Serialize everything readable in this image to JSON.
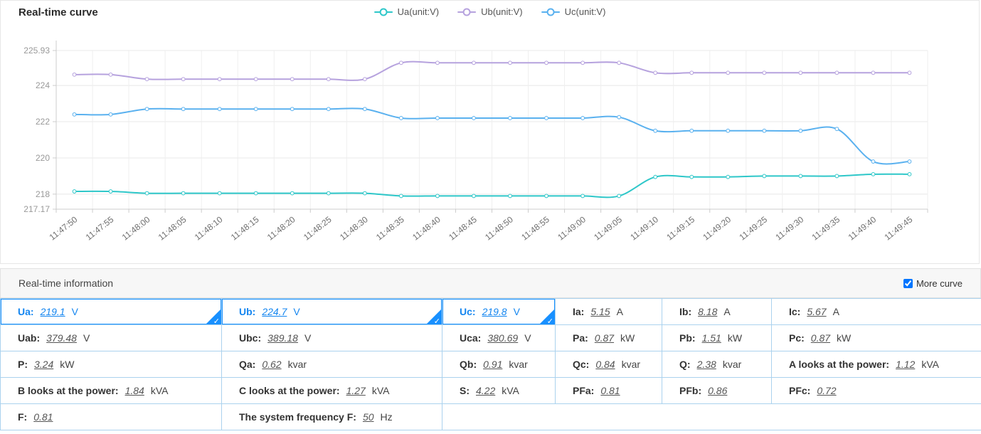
{
  "chart": {
    "title": "Real-time curve",
    "legend": [
      {
        "label": "Ua(unit:V)",
        "color": "#2ec7c9"
      },
      {
        "label": "Ub(unit:V)",
        "color": "#b6a2de"
      },
      {
        "label": "Uc(unit:V)",
        "color": "#5ab1ef"
      }
    ]
  },
  "chart_data": {
    "type": "line",
    "smooth": true,
    "grid": true,
    "legend_position": "top-center",
    "x": [
      "11:47:50",
      "11:47:55",
      "11:48:00",
      "11:48:05",
      "11:48:10",
      "11:48:15",
      "11:48:20",
      "11:48:25",
      "11:48:30",
      "11:48:35",
      "11:48:40",
      "11:48:45",
      "11:48:50",
      "11:48:55",
      "11:49:00",
      "11:49:05",
      "11:49:10",
      "11:49:15",
      "11:49:20",
      "11:49:25",
      "11:49:30",
      "11:49:35",
      "11:49:40",
      "11:49:45"
    ],
    "ylim": [
      217.17,
      225.93
    ],
    "yticks": [
      {
        "v": 217.17,
        "label": "217.17"
      },
      {
        "v": 218,
        "label": "218"
      },
      {
        "v": 220,
        "label": "220"
      },
      {
        "v": 222,
        "label": "222"
      },
      {
        "v": 224,
        "label": "224"
      },
      {
        "v": 225.93,
        "label": "225.93"
      }
    ],
    "series": [
      {
        "name": "Ua(unit:V)",
        "color": "#2ec7c9",
        "values": [
          218.15,
          218.15,
          218.05,
          218.05,
          218.05,
          218.05,
          218.05,
          218.05,
          218.05,
          217.9,
          217.9,
          217.9,
          217.9,
          217.9,
          217.9,
          217.9,
          218.95,
          218.95,
          218.95,
          219.0,
          219.0,
          219.0,
          219.1,
          219.1
        ]
      },
      {
        "name": "Ub(unit:V)",
        "color": "#b6a2de",
        "values": [
          224.6,
          224.6,
          224.35,
          224.35,
          224.35,
          224.35,
          224.35,
          224.35,
          224.35,
          225.25,
          225.25,
          225.25,
          225.25,
          225.25,
          225.25,
          225.25,
          224.7,
          224.7,
          224.7,
          224.7,
          224.7,
          224.7,
          224.7,
          224.7
        ]
      },
      {
        "name": "Uc(unit:V)",
        "color": "#5ab1ef",
        "values": [
          222.4,
          222.4,
          222.7,
          222.7,
          222.7,
          222.7,
          222.7,
          222.7,
          222.7,
          222.2,
          222.2,
          222.2,
          222.2,
          222.2,
          222.2,
          222.25,
          221.5,
          221.5,
          221.5,
          221.5,
          221.5,
          221.6,
          219.8,
          219.8
        ]
      }
    ]
  },
  "info": {
    "header": "Real-time information",
    "more_curve_label": "More curve",
    "more_curve_checked": true,
    "accent_color": "#1890ff",
    "border_color": "#abd2ee",
    "rows": [
      [
        {
          "label": "Ua:",
          "value": "219.1",
          "unit": "V",
          "selected": true
        },
        {
          "label": "Ub:",
          "value": "224.7",
          "unit": "V",
          "selected": true
        },
        {
          "label": "Uc:",
          "value": "219.8",
          "unit": "V",
          "selected": true
        },
        {
          "label": "Ia:",
          "value": "5.15",
          "unit": "A"
        },
        {
          "label": "Ib:",
          "value": "8.18",
          "unit": "A"
        },
        {
          "label": "Ic:",
          "value": "5.67",
          "unit": "A"
        }
      ],
      [
        {
          "label": "Uab:",
          "value": "379.48",
          "unit": "V"
        },
        {
          "label": "Ubc:",
          "value": "389.18",
          "unit": "V"
        },
        {
          "label": "Uca:",
          "value": "380.69",
          "unit": "V"
        },
        {
          "label": "Pa:",
          "value": "0.87",
          "unit": "kW"
        },
        {
          "label": "Pb:",
          "value": "1.51",
          "unit": "kW"
        },
        {
          "label": "Pc:",
          "value": "0.87",
          "unit": "kW"
        }
      ],
      [
        {
          "label": "P:",
          "value": "3.24",
          "unit": "kW"
        },
        {
          "label": "Qa:",
          "value": "0.62",
          "unit": "kvar"
        },
        {
          "label": "Qb:",
          "value": "0.91",
          "unit": "kvar"
        },
        {
          "label": "Qc:",
          "value": "0.84",
          "unit": "kvar"
        },
        {
          "label": "Q:",
          "value": "2.38",
          "unit": "kvar"
        },
        {
          "label": "A looks at the power:",
          "value": "1.12",
          "unit": "kVA"
        }
      ],
      [
        {
          "label": "B looks at the power:",
          "value": "1.84",
          "unit": "kVA"
        },
        {
          "label": "C looks at the power:",
          "value": "1.27",
          "unit": "kVA"
        },
        {
          "label": "S:",
          "value": "4.22",
          "unit": "kVA"
        },
        {
          "label": "PFa:",
          "value": "0.81",
          "unit": ""
        },
        {
          "label": "PFb:",
          "value": "0.86",
          "unit": ""
        },
        {
          "label": "PFc:",
          "value": "0.72",
          "unit": ""
        }
      ],
      [
        {
          "label": "F:",
          "value": "0.81",
          "unit": ""
        },
        {
          "label": "The system frequency F:",
          "value": "50",
          "unit": "Hz"
        },
        {
          "empty": true,
          "span": 4
        }
      ]
    ]
  }
}
